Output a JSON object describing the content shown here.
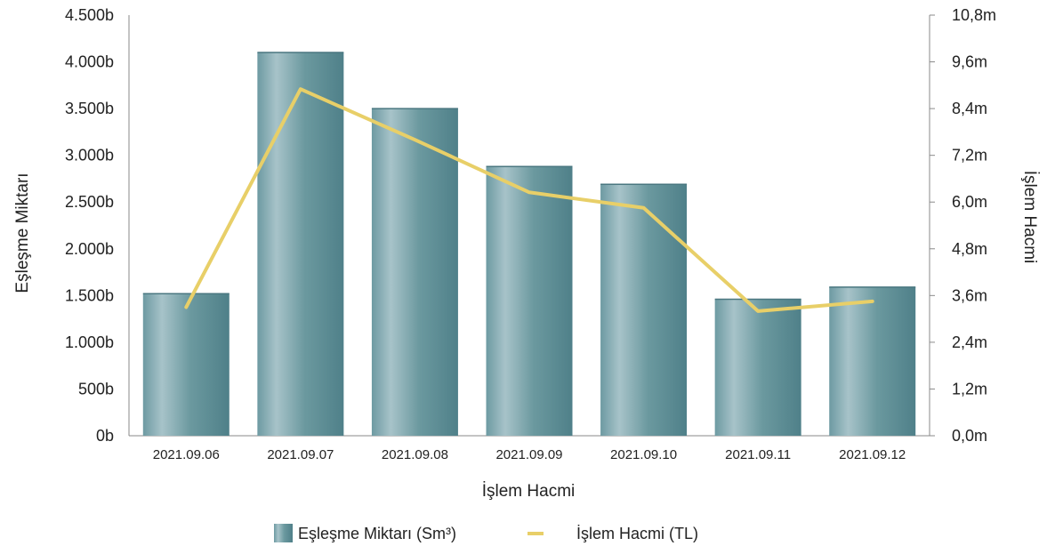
{
  "chart_data": {
    "type": "bar",
    "title": "",
    "xlabel": "İşlem Hacmi",
    "ylabel": "Eşleşme Miktarı",
    "y2label": "İşlem Hacmi",
    "categories": [
      "2021.09.06",
      "2021.09.07",
      "2021.09.08",
      "2021.09.09",
      "2021.09.10",
      "2021.09.11",
      "2021.09.12"
    ],
    "series": [
      {
        "name": "Eşleşme Miktarı (Sm³)",
        "type": "bar",
        "axis": "left",
        "color": "#5f9098",
        "values": [
          1520,
          4100,
          3500,
          2880,
          2690,
          1460,
          1590
        ]
      },
      {
        "name": "İşlem Hacmi (TL)",
        "type": "line",
        "axis": "right",
        "color": "#e8cf68",
        "values": [
          3.3,
          8.9,
          7.6,
          6.25,
          5.85,
          3.2,
          3.45
        ]
      }
    ],
    "ylim": [
      0,
      4500
    ],
    "y2lim": [
      0,
      10.8
    ],
    "yticks": [
      "0b",
      "500b",
      "1.000b",
      "1.500b",
      "2.000b",
      "2.500b",
      "3.000b",
      "3.500b",
      "4.000b",
      "4.500b"
    ],
    "y2ticks": [
      "0,0m",
      "1,2m",
      "2,4m",
      "3,6m",
      "4,8m",
      "6,0m",
      "7,2m",
      "8,4m",
      "9,6m",
      "10,8m"
    ],
    "grid": false,
    "legend_position": "bottom"
  }
}
